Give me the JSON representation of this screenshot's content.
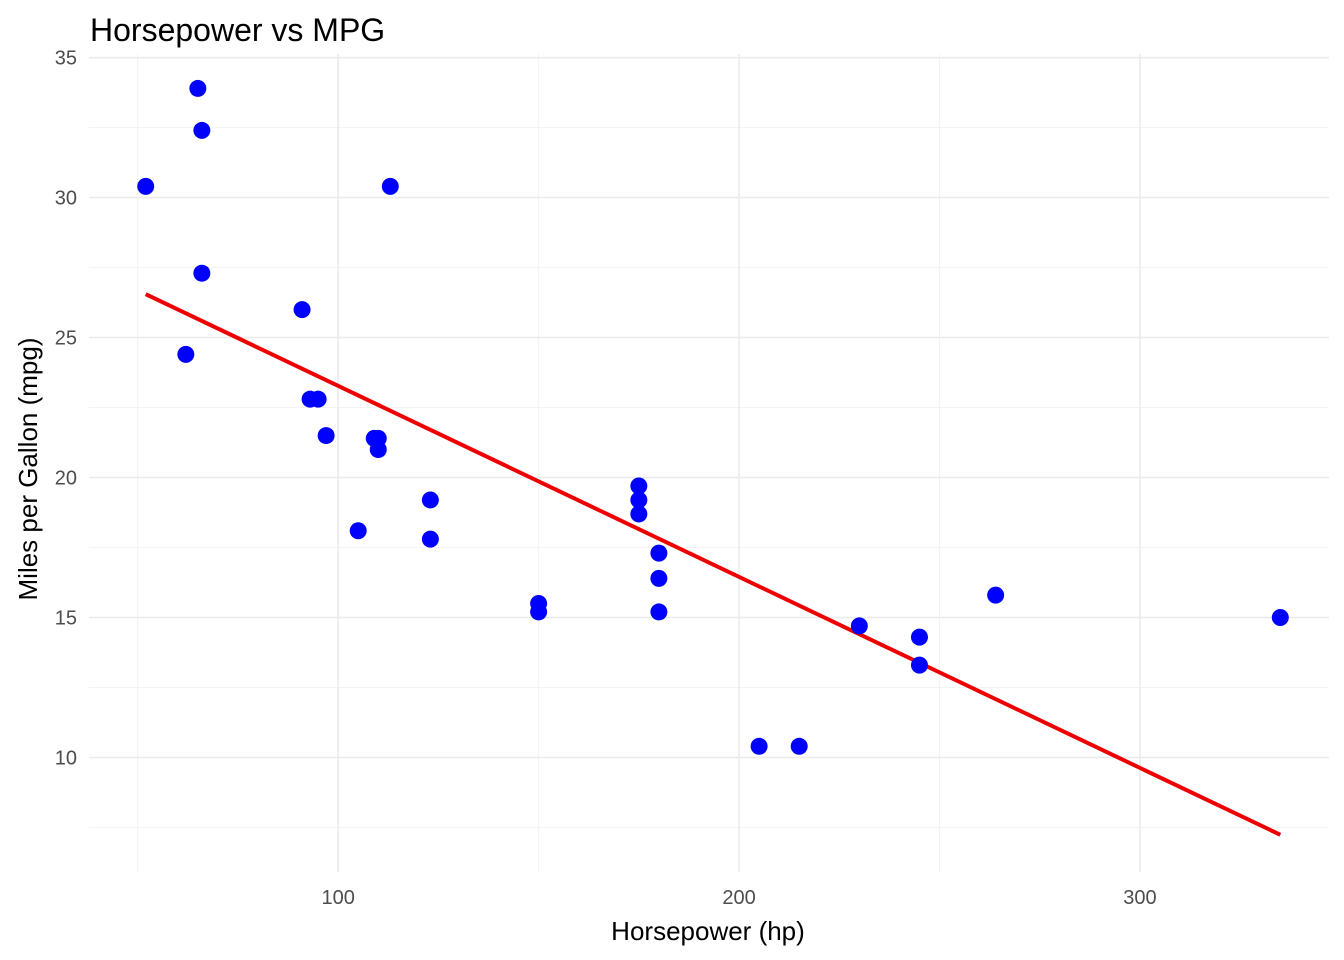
{
  "chart_data": {
    "type": "scatter",
    "title": "Horsepower vs MPG",
    "xlabel": "Horsepower (hp)",
    "ylabel": "Miles per Gallon (mpg)",
    "xlim": [
      37.85,
      347.15
    ],
    "ylim": [
      5.91,
      35.13
    ],
    "x_ticks": [
      100,
      200,
      300
    ],
    "y_ticks": [
      10,
      15,
      20,
      25,
      30,
      35
    ],
    "x_minor_ticks": [
      50,
      150,
      250
    ],
    "y_minor_ticks": [
      7.5,
      12.5,
      17.5,
      22.5,
      27.5,
      32.5
    ],
    "grid": true,
    "legend": "none",
    "point_color": "#0000ff",
    "line_color": "#ee0000",
    "points": [
      {
        "x": 52,
        "y": 30.4
      },
      {
        "x": 65,
        "y": 33.9
      },
      {
        "x": 66,
        "y": 32.4
      },
      {
        "x": 66,
        "y": 27.3
      },
      {
        "x": 62,
        "y": 24.4
      },
      {
        "x": 91,
        "y": 26.0
      },
      {
        "x": 93,
        "y": 22.8
      },
      {
        "x": 95,
        "y": 22.8
      },
      {
        "x": 97,
        "y": 21.5
      },
      {
        "x": 109,
        "y": 21.4
      },
      {
        "x": 110,
        "y": 21.4
      },
      {
        "x": 110,
        "y": 21.0
      },
      {
        "x": 113,
        "y": 30.4
      },
      {
        "x": 105,
        "y": 18.1
      },
      {
        "x": 123,
        "y": 19.2
      },
      {
        "x": 123,
        "y": 17.8
      },
      {
        "x": 150,
        "y": 15.5
      },
      {
        "x": 150,
        "y": 15.2
      },
      {
        "x": 175,
        "y": 19.7
      },
      {
        "x": 175,
        "y": 19.2
      },
      {
        "x": 175,
        "y": 18.7
      },
      {
        "x": 180,
        "y": 17.3
      },
      {
        "x": 180,
        "y": 16.4
      },
      {
        "x": 180,
        "y": 15.2
      },
      {
        "x": 205,
        "y": 10.4
      },
      {
        "x": 215,
        "y": 10.4
      },
      {
        "x": 230,
        "y": 14.7
      },
      {
        "x": 245,
        "y": 14.3
      },
      {
        "x": 245,
        "y": 13.3
      },
      {
        "x": 264,
        "y": 15.8
      },
      {
        "x": 335,
        "y": 15.0
      }
    ],
    "trend_line": {
      "type": "linear",
      "x": [
        52,
        335
      ],
      "y": [
        26.55,
        7.24
      ]
    }
  }
}
